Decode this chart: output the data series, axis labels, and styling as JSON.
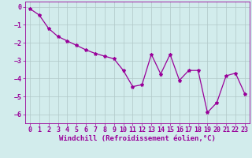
{
  "x": [
    0,
    1,
    2,
    3,
    4,
    5,
    6,
    7,
    8,
    9,
    10,
    11,
    12,
    13,
    14,
    15,
    16,
    17,
    18,
    19,
    20,
    21,
    22,
    23
  ],
  "y": [
    -0.1,
    -0.45,
    -1.2,
    -1.65,
    -1.9,
    -2.15,
    -2.4,
    -2.6,
    -2.75,
    -2.9,
    -3.55,
    -4.45,
    -4.35,
    -2.65,
    -3.75,
    -2.65,
    -4.1,
    -3.55,
    -3.55,
    -5.9,
    -5.35,
    -3.85,
    -3.7,
    -4.85
  ],
  "line_color": "#990099",
  "marker": "*",
  "marker_size": 3,
  "bg_color": "#d2ecec",
  "grid_color": "#b0c8c8",
  "xlabel": "Windchill (Refroidissement éolien,°C)",
  "xlim": [
    -0.5,
    23.5
  ],
  "ylim": [
    -6.5,
    0.3
  ],
  "yticks": [
    0,
    -1,
    -2,
    -3,
    -4,
    -5,
    -6
  ],
  "xticks": [
    0,
    1,
    2,
    3,
    4,
    5,
    6,
    7,
    8,
    9,
    10,
    11,
    12,
    13,
    14,
    15,
    16,
    17,
    18,
    19,
    20,
    21,
    22,
    23
  ],
  "xlabel_fontsize": 6.5,
  "tick_fontsize": 6.0,
  "line_width": 0.9
}
